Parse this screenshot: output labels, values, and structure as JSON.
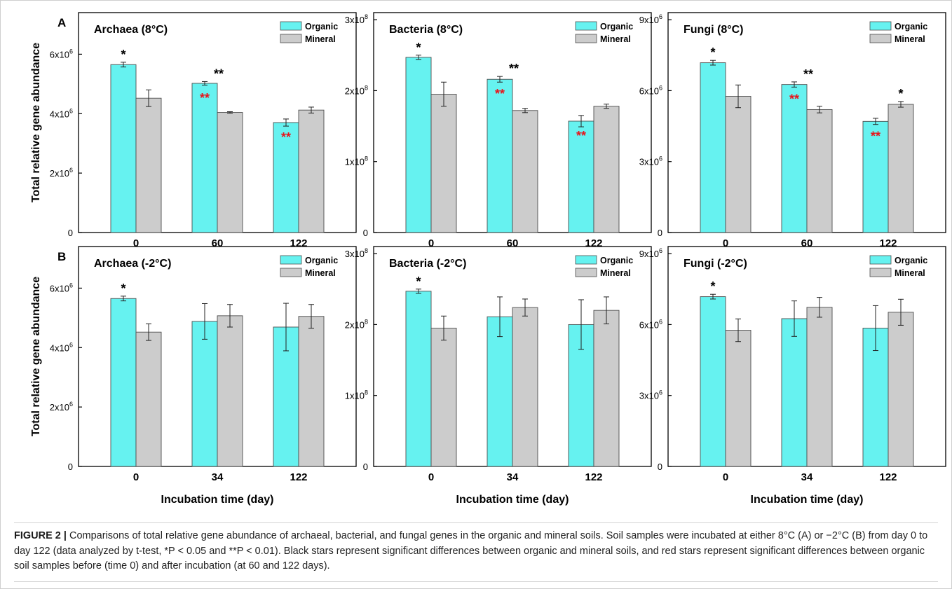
{
  "chart_data": [
    {
      "type": "bar",
      "title": "Archaea (8°C)",
      "panel_label": "A",
      "xlabel": "",
      "ylabel": "Total relative gene abundance",
      "categories": [
        "0",
        "60",
        "122"
      ],
      "ylim": [
        0,
        7400000
      ],
      "yticks": [
        0,
        2000000,
        4000000,
        6000000
      ],
      "ytick_labels": [
        [
          "0",
          ""
        ],
        [
          "2x10",
          "6"
        ],
        [
          "4x10",
          "6"
        ],
        [
          "6x10",
          "6"
        ]
      ],
      "legend_position": "top-right",
      "series": [
        {
          "name": "Organic",
          "color": "#66f2f0",
          "values": [
            5650000,
            5020000,
            3700000
          ],
          "errors": [
            80000,
            60000,
            120000
          ]
        },
        {
          "name": "Mineral",
          "color": "#cccccc",
          "values": [
            4520000,
            4040000,
            4120000
          ],
          "errors": [
            280000,
            25000,
            100000
          ]
        }
      ],
      "annotations": [
        {
          "text": "*",
          "color": "#000000",
          "category": 0,
          "series": 0
        },
        {
          "text": "**",
          "color": "#000000",
          "category": 1,
          "series": 0
        },
        {
          "text": "**",
          "color": "#e8141b",
          "category": 1,
          "series": 0
        },
        {
          "text": "**",
          "color": "#e8141b",
          "category": 2,
          "series": 0
        }
      ]
    },
    {
      "type": "bar",
      "title": "Bacteria (8°C)",
      "xlabel": "",
      "ylabel": "",
      "categories": [
        "0",
        "60",
        "122"
      ],
      "ylim": [
        0,
        310000000
      ],
      "yticks": [
        0,
        100000000,
        200000000,
        300000000
      ],
      "ytick_labels": [
        [
          "0",
          ""
        ],
        [
          "1x10",
          "8"
        ],
        [
          "2x10",
          "8"
        ],
        [
          "3x10",
          "8"
        ]
      ],
      "legend_position": "top-right",
      "series": [
        {
          "name": "Organic",
          "color": "#66f2f0",
          "values": [
            247000000,
            216000000,
            157000000
          ],
          "errors": [
            3000000,
            4000000,
            8000000
          ]
        },
        {
          "name": "Mineral",
          "color": "#cccccc",
          "values": [
            195000000,
            172000000,
            178000000
          ],
          "errors": [
            17000000,
            3000000,
            3000000
          ]
        }
      ],
      "annotations": [
        {
          "text": "*",
          "color": "#000000",
          "category": 0,
          "series": 0
        },
        {
          "text": "**",
          "color": "#000000",
          "category": 1,
          "series": 0
        },
        {
          "text": "**",
          "color": "#e8141b",
          "category": 1,
          "series": 0
        },
        {
          "text": "**",
          "color": "#e8141b",
          "category": 2,
          "series": 0
        }
      ]
    },
    {
      "type": "bar",
      "title": "Fungi (8°C)",
      "xlabel": "",
      "ylabel": "",
      "categories": [
        "0",
        "60",
        "122"
      ],
      "ylim": [
        0,
        9300000
      ],
      "yticks": [
        0,
        3000000,
        6000000,
        9000000
      ],
      "ytick_labels": [
        [
          "0",
          ""
        ],
        [
          "3x10",
          "6"
        ],
        [
          "6x10",
          "6"
        ],
        [
          "9x10",
          "6"
        ]
      ],
      "legend_position": "top-right",
      "series": [
        {
          "name": "Organic",
          "color": "#66f2f0",
          "values": [
            7180000,
            6260000,
            4700000
          ],
          "errors": [
            100000,
            110000,
            130000
          ]
        },
        {
          "name": "Mineral",
          "color": "#cccccc",
          "values": [
            5760000,
            5200000,
            5420000
          ],
          "errors": [
            480000,
            140000,
            120000
          ]
        }
      ],
      "annotations": [
        {
          "text": "*",
          "color": "#000000",
          "category": 0,
          "series": 0
        },
        {
          "text": "**",
          "color": "#000000",
          "category": 1,
          "series": 0
        },
        {
          "text": "**",
          "color": "#e8141b",
          "category": 1,
          "series": 0
        },
        {
          "text": "**",
          "color": "#e8141b",
          "category": 2,
          "series": 0
        },
        {
          "text": "*",
          "color": "#000000",
          "category": 2,
          "series": 1
        }
      ]
    },
    {
      "type": "bar",
      "title": "Archaea (-2°C)",
      "panel_label": "B",
      "xlabel": "Incubation time (day)",
      "ylabel": "Total relative gene abundance",
      "categories": [
        "0",
        "34",
        "122"
      ],
      "ylim": [
        0,
        7400000
      ],
      "yticks": [
        0,
        2000000,
        4000000,
        6000000
      ],
      "ytick_labels": [
        [
          "0",
          ""
        ],
        [
          "2x10",
          "6"
        ],
        [
          "4x10",
          "6"
        ],
        [
          "6x10",
          "6"
        ]
      ],
      "legend_position": "top-right",
      "series": [
        {
          "name": "Organic",
          "color": "#66f2f0",
          "values": [
            5650000,
            4880000,
            4690000
          ],
          "errors": [
            80000,
            600000,
            800000
          ]
        },
        {
          "name": "Mineral",
          "color": "#cccccc",
          "values": [
            4520000,
            5070000,
            5050000
          ],
          "errors": [
            280000,
            380000,
            400000
          ]
        }
      ],
      "annotations": [
        {
          "text": "*",
          "color": "#000000",
          "category": 0,
          "series": 0
        }
      ]
    },
    {
      "type": "bar",
      "title": "Bacteria (-2°C)",
      "xlabel": "Incubation time (day)",
      "ylabel": "",
      "categories": [
        "0",
        "34",
        "122"
      ],
      "ylim": [
        0,
        310000000
      ],
      "yticks": [
        0,
        100000000,
        200000000,
        300000000
      ],
      "ytick_labels": [
        [
          "0",
          ""
        ],
        [
          "1x10",
          "8"
        ],
        [
          "2x10",
          "8"
        ],
        [
          "3x10",
          "8"
        ]
      ],
      "legend_position": "top-right",
      "series": [
        {
          "name": "Organic",
          "color": "#66f2f0",
          "values": [
            247000000,
            211000000,
            200000000
          ],
          "errors": [
            3000000,
            28000000,
            35000000
          ]
        },
        {
          "name": "Mineral",
          "color": "#cccccc",
          "values": [
            195000000,
            224000000,
            220000000
          ],
          "errors": [
            17000000,
            12000000,
            19000000
          ]
        }
      ],
      "annotations": [
        {
          "text": "*",
          "color": "#000000",
          "category": 0,
          "series": 0
        }
      ]
    },
    {
      "type": "bar",
      "title": "Fungi (-2°C)",
      "xlabel": "Incubation time (day)",
      "ylabel": "",
      "categories": [
        "0",
        "34",
        "122"
      ],
      "ylim": [
        0,
        9300000
      ],
      "yticks": [
        0,
        3000000,
        6000000,
        9000000
      ],
      "ytick_labels": [
        [
          "0",
          ""
        ],
        [
          "3x10",
          "6"
        ],
        [
          "6x10",
          "6"
        ],
        [
          "9x10",
          "6"
        ]
      ],
      "legend_position": "top-right",
      "series": [
        {
          "name": "Organic",
          "color": "#66f2f0",
          "values": [
            7180000,
            6250000,
            5850000
          ],
          "errors": [
            100000,
            750000,
            950000
          ]
        },
        {
          "name": "Mineral",
          "color": "#cccccc",
          "values": [
            5760000,
            6730000,
            6520000
          ],
          "errors": [
            480000,
            420000,
            550000
          ]
        }
      ],
      "annotations": [
        {
          "text": "*",
          "color": "#000000",
          "category": 0,
          "series": 0
        }
      ]
    }
  ],
  "caption": {
    "label": "FIGURE 2 |",
    "text": " Comparisons of total relative gene abundance of archaeal, bacterial, and fungal genes in the organic and mineral soils. Soil samples were incubated at either 8°C (A) or −2°C (B) from day 0 to day 122 (data analyzed by t-test, *P < 0.05 and **P < 0.01). Black stars represent significant differences between organic and mineral soils, and red stars represent significant differences between organic soil samples before (time 0) and after incubation (at 60 and 122 days)."
  }
}
